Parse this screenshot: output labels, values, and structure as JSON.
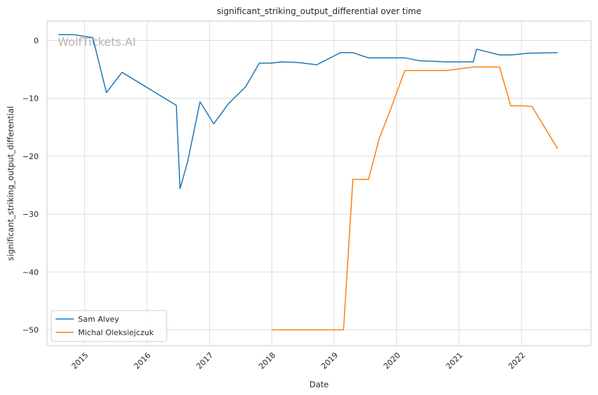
{
  "chart_data": {
    "type": "line",
    "title": "significant_striking_output_differential over time",
    "xlabel": "Date",
    "ylabel": "significant_striking_output_differential",
    "watermark": "WolfTickets.AI",
    "xlim": [
      2014.4,
      2022.9
    ],
    "ylim": [
      -52.5,
      3.5
    ],
    "x_ticks": [
      2015,
      2016,
      2017,
      2018,
      2019,
      2020,
      2021,
      2022
    ],
    "x_tick_labels": [
      "2015",
      "2016",
      "2017",
      "2018",
      "2019",
      "2020",
      "2021",
      "2022"
    ],
    "y_ticks": [
      0,
      -10,
      -20,
      -30,
      -40,
      -50
    ],
    "y_tick_labels": [
      "0",
      "−10",
      "−20",
      "−30",
      "−40",
      "−50"
    ],
    "grid": true,
    "legend_position": "bottom-left",
    "series": [
      {
        "name": "Sam Alvey",
        "color": "#1f77b4",
        "x": [
          2014.58,
          2014.83,
          2015.0,
          2015.13,
          2015.35,
          2015.6,
          2016.47,
          2016.53,
          2016.65,
          2016.85,
          2017.07,
          2017.3,
          2017.58,
          2017.8,
          2018.0,
          2018.15,
          2018.42,
          2018.72,
          2019.1,
          2019.3,
          2019.55,
          2019.9,
          2020.13,
          2020.37,
          2020.8,
          2021.05,
          2021.23,
          2021.28,
          2021.65,
          2021.85,
          2022.1,
          2022.58
        ],
        "y": [
          1.0,
          1.0,
          0.7,
          0.5,
          -9.0,
          -5.5,
          -11.2,
          -25.6,
          -21.0,
          -10.6,
          -14.4,
          -11.0,
          -8.0,
          -3.9,
          -3.9,
          -3.7,
          -3.8,
          -4.2,
          -2.1,
          -2.1,
          -3.0,
          -3.0,
          -3.0,
          -3.5,
          -3.7,
          -3.7,
          -3.7,
          -1.5,
          -2.5,
          -2.5,
          -2.2,
          -2.1
        ]
      },
      {
        "name": "Michal Oleksiejczuk",
        "color": "#ff7f0e",
        "x": [
          2018.0,
          2019.15,
          2019.3,
          2019.55,
          2019.72,
          2019.9,
          2020.13,
          2020.8,
          2021.23,
          2021.65,
          2021.83,
          2022.05,
          2022.17,
          2022.58
        ],
        "y": [
          -50.0,
          -50.0,
          -24.0,
          -24.0,
          -17.0,
          -12.0,
          -5.2,
          -5.2,
          -4.6,
          -4.6,
          -11.3,
          -11.3,
          -11.4,
          -18.7
        ]
      }
    ]
  }
}
